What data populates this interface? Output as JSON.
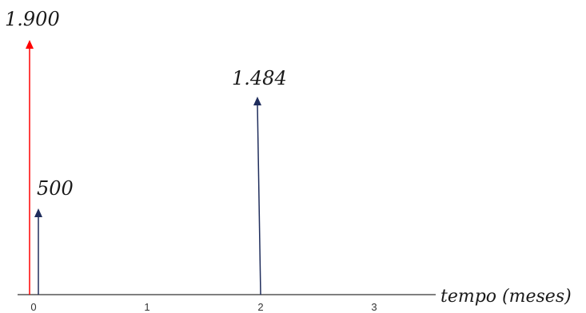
{
  "diagram": {
    "type": "cash-flow",
    "x_axis_label": "tempo (meses)",
    "x_ticks": [
      "0",
      "1",
      "2",
      "3"
    ],
    "flows": [
      {
        "t": 0,
        "value": 1900,
        "label": "1.900",
        "direction": "up",
        "color": "#ff0000"
      },
      {
        "t": 0.04,
        "value": 500,
        "label": "500",
        "direction": "up",
        "color": "#1f2d5c"
      },
      {
        "t": 2,
        "value": 1484,
        "label": "1.484",
        "direction": "up",
        "color": "#1f2d5c"
      }
    ],
    "axis_color": "#555555"
  }
}
